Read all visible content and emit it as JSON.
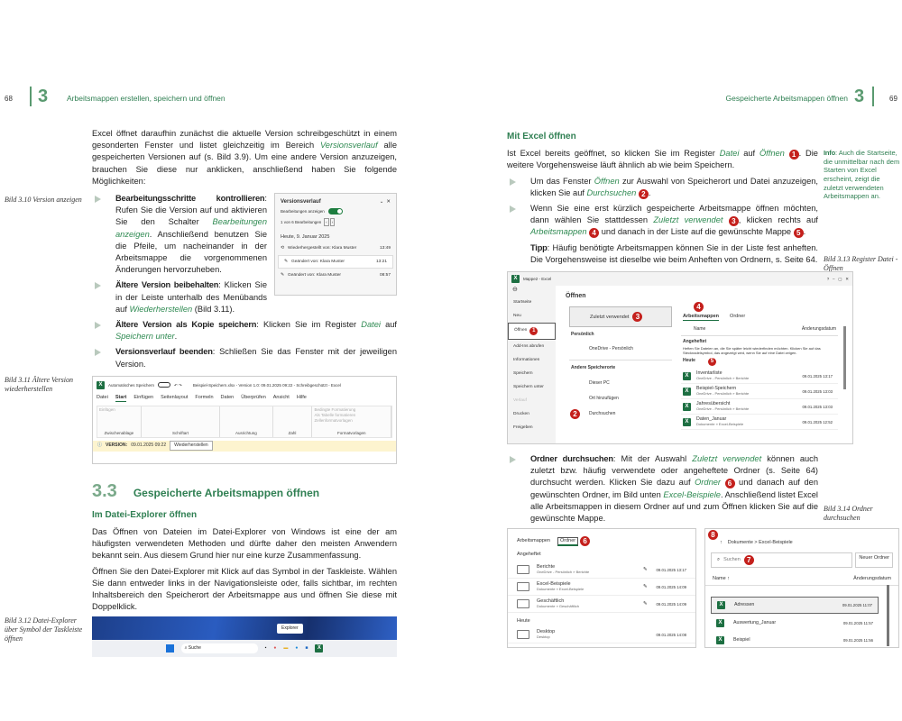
{
  "left": {
    "page_number": "68",
    "chapter": "3",
    "running_title": "Arbeitsmappen erstellen, speichern und öffnen",
    "intro": [
      {
        "t": "Excel öffnet daraufhin zunächst die aktuelle Version schreibgeschützt in einem gesonderten Fenster und listet gleichzeitig im Bereich "
      },
      {
        "t": "Versionsverlauf",
        "s": "i"
      },
      {
        "t": " alle gespeicherten Versionen auf (s. Bild 3.9). Um eine andere Version anzuzeigen, brauchen Sie diese nur anklicken, anschließend haben Sie folgende Möglichkeiten:"
      }
    ],
    "caption_310": "Bild 3.10 Version anzeigen",
    "bullets_a": [
      [
        {
          "t": "Bearbeitungsschritte kontrollieren",
          "s": "b"
        },
        {
          "t": ": Rufen Sie die Version auf und aktivieren Sie den Schalter "
        },
        {
          "t": "Bearbeitungen anzeigen",
          "s": "i"
        },
        {
          "t": ". Anschließend benutzen Sie die Pfeile, um nacheinander in der Arbeitsmappe die vorgenommenen Änderungen hervorzuheben."
        }
      ],
      [
        {
          "t": "Ältere Version beibehalten",
          "s": "b"
        },
        {
          "t": ": Klicken Sie in der Leiste unterhalb des Menübands auf "
        },
        {
          "t": "Wiederherstellen",
          "s": "i"
        },
        {
          "t": " (Bild 3.11)."
        }
      ]
    ],
    "bullets_b": [
      [
        {
          "t": "Ältere Version als Kopie speichern",
          "s": "b"
        },
        {
          "t": ": Klicken Sie im Register "
        },
        {
          "t": "Datei",
          "s": "i"
        },
        {
          "t": " auf "
        },
        {
          "t": "Speichern unter",
          "s": "i"
        },
        {
          "t": "."
        }
      ],
      [
        {
          "t": "Versionsverlauf beenden",
          "s": "b"
        },
        {
          "t": ": Schließen Sie das Fenster mit der jeweiligen Version."
        }
      ]
    ],
    "version_panel": {
      "title": "Versionsverlauf",
      "toggle_label": "Bearbeitungen anzeigen",
      "toggle_on": true,
      "counter": "1 von 6 Bearbeitungen",
      "date": "Heute, 9. Januar 2025",
      "entries": [
        {
          "label": "Wiederhergestellt von: Klara Muster",
          "time": "13:49"
        },
        {
          "label": "Geändert von: Klara Muster",
          "time": "13:21"
        },
        {
          "label": "Geändert von: Klara Muster",
          "time": "08:57"
        }
      ]
    },
    "caption_311": "Bild 3.11 Ältere Version wiederherstellen",
    "ribbon": {
      "autosave": "Automatisches Speichern",
      "title": "Beispiel-Speichern.xlsx - Version 1.0: 09.01.2025 09:22 - Schreibgeschützt - Excel",
      "tabs": [
        "Datei",
        "Start",
        "Einfügen",
        "Seitenlayout",
        "Formeln",
        "Daten",
        "Überprüfen",
        "Ansicht",
        "Hilfe"
      ],
      "active_tab": "Start",
      "groups": [
        "Zwischenablage",
        "Schriftart",
        "Ausrichtung",
        "Zahl",
        "Formatvorlagen"
      ],
      "paste": "Einfügen",
      "styles": [
        "Bedingte Formatierung",
        "Als Tabelle formatieren",
        "Zellenformatvorlagen"
      ],
      "version_label": "VERSION:",
      "version_value": "09.01.2025 09:22",
      "restore_button": "Wiederherstellen"
    },
    "section_number": "3.3",
    "section_title": "Gespeicherte Arbeitsmappen öffnen",
    "sub_title": "Im Datei-Explorer öffnen",
    "para1": "Das Öffnen von Dateien im Datei-Explorer von Windows ist eine der am häufigsten verwendeten Methoden und dürfte daher den meisten Anwendern bekannt sein. Aus diesem Grund hier nur eine kurze Zusammenfassung.",
    "para2": "Öffnen Sie den Datei-Explorer mit Klick auf das Symbol in der Taskleiste. Wählen Sie dann entweder links in der Navigationsleiste oder, falls sichtbar, im rechten Inhaltsbereich den Speicherort der Arbeitsmappe aus und öffnen Sie diese mit Doppelklick.",
    "caption_312": "Bild 3.12 Datei-Explorer über Symbol der Taskleiste öffnen",
    "taskbar": {
      "tooltip": "Explorer",
      "search": "Suche"
    }
  },
  "right": {
    "page_number": "69",
    "chapter": "3",
    "running_title": "Gespeicherte Arbeitsmappen öffnen",
    "sub_title": "Mit Excel öffnen",
    "intro": [
      {
        "t": "Ist Excel bereits geöffnet, so klicken Sie im Register "
      },
      {
        "t": "Datei",
        "s": "i"
      },
      {
        "t": " auf "
      },
      {
        "t": "Öffnen",
        "s": "i"
      },
      {
        "t": " "
      },
      {
        "t": "1",
        "s": "n"
      },
      {
        "t": ". Die weitere Vorgehensweise läuft ähnlich ab wie beim Speichern."
      }
    ],
    "info": [
      {
        "t": "Info",
        "s": "b"
      },
      {
        "t": ": Auch die Startseite, die unmittelbar nach dem Starten von Excel erscheint, zeigt die zuletzt verwendeten Arbeitsmappen an."
      }
    ],
    "bullets": [
      [
        {
          "t": "Um das Fenster "
        },
        {
          "t": "Öffnen",
          "s": "i"
        },
        {
          "t": " zur Auswahl von Speicherort und Datei anzuzeigen, klicken Sie auf "
        },
        {
          "t": "Durchsuchen",
          "s": "i"
        },
        {
          "t": " "
        },
        {
          "t": "2",
          "s": "n"
        },
        {
          "t": "."
        }
      ],
      [
        {
          "t": "Wenn Sie eine erst kürzlich gespeicherte Arbeitsmappe öffnen möchten, dann wählen Sie stattdessen "
        },
        {
          "t": "Zuletzt verwendet",
          "s": "i"
        },
        {
          "t": " "
        },
        {
          "t": "3",
          "s": "n"
        },
        {
          "t": ", klicken rechts auf "
        },
        {
          "t": "Arbeitsmappen",
          "s": "i"
        },
        {
          "t": " "
        },
        {
          "t": "4",
          "s": "n"
        },
        {
          "t": " und danach in der Liste auf die gewünschte Mappe "
        },
        {
          "t": "5",
          "s": "n"
        },
        {
          "t": "."
        }
      ]
    ],
    "tip": [
      {
        "t": "Tipp",
        "s": "b"
      },
      {
        "t": ": Häufig benötigte Arbeitsmappen können Sie in der Liste fest anheften. Die Vorgehensweise ist dieselbe wie beim Anheften von Ordnern, s. Seite 64."
      }
    ],
    "caption_313": "Bild 3.13 Register Datei - Öffnen",
    "open_dialog": {
      "window_title": "Mappe2 - Excel",
      "heading": "Öffnen",
      "nav": [
        "Startseite",
        "Neu",
        "Öffnen",
        "Add-Ins abrufen",
        "Informationen",
        "Speichern",
        "Speichern unter",
        "Verlauf",
        "Drucken",
        "Freigeben"
      ],
      "active_nav": "Öffnen",
      "recent": "Zuletzt verwendet",
      "personal": "Persönlich",
      "onedrive": "OneDrive - Persönlich",
      "other": "Andere Speicherorte",
      "this_pc": "Dieser PC",
      "add_place": "Ort hinzufügen",
      "browse": "Durchsuchen",
      "tabs": [
        "Arbeitsmappen",
        "Ordner"
      ],
      "col_name": "Name",
      "col_date": "Änderungsdatum",
      "pinned": "Angeheftet",
      "pinned_hint": "Heften Sie Dateien an, die Sie später leicht wiederfinden möchten. Klicken Sie auf das Stecknadelsymbol, das angezeigt wird, wenn Sie auf eine Datei zeigen.",
      "today": "Heute",
      "files": [
        {
          "name": "Inventarliste",
          "path": "OneDrive - Persönlich » Berichte",
          "date": "09.01.2025 13:17"
        },
        {
          "name": "Beispiel-Speichern",
          "path": "OneDrive - Persönlich » Berichte",
          "date": "09.01.2025 13:03"
        },
        {
          "name": "Jahresübersicht",
          "path": "OneDrive - Persönlich » Berichte",
          "date": "09.01.2025 13:03"
        },
        {
          "name": "Daten_Januar",
          "path": "Dokumente » Excel-Beispiele",
          "date": "09.01.2025 12:52"
        }
      ]
    },
    "bullet_folder": [
      {
        "t": "Ordner durchsuchen",
        "s": "b"
      },
      {
        "t": ": Mit der Auswahl "
      },
      {
        "t": "Zuletzt verwendet",
        "s": "i"
      },
      {
        "t": " können auch zuletzt bzw. häufig verwendete oder angeheftete Ordner (s. Seite 64) durchsucht werden. Klicken Sie dazu auf "
      },
      {
        "t": "Ordner",
        "s": "i"
      },
      {
        "t": " "
      },
      {
        "t": "6",
        "s": "n"
      },
      {
        "t": " und danach auf den gewünschten Ordner, im Bild unten "
      },
      {
        "t": "Excel-Beispiele",
        "s": "i"
      },
      {
        "t": ". Anschließend listet Excel alle Arbeitsmappen in diesem Ordner auf und zum Öffnen klicken Sie auf die gewünschte Mappe."
      }
    ],
    "caption_314": "Bild 3.14 Ordner durchsuchen",
    "folders": {
      "tabs": [
        "Arbeitsmappen",
        "Ordner"
      ],
      "pinned": "Angeheftet",
      "today": "Heute",
      "items": [
        {
          "name": "Berichte",
          "path": "OneDrive - Persönlich » Berichte",
          "date": "09.01.2025 13:17"
        },
        {
          "name": "Excel-Beispiele",
          "path": "Dokumente » Excel-Beispiele",
          "date": "09.01.2025 14:09"
        },
        {
          "name": "Geschäftlich",
          "path": "Dokumente » Geschäftlich",
          "date": "09.01.2025 14:09"
        }
      ],
      "today_item": {
        "name": "Desktop",
        "path": "Desktop",
        "date": "09.01.2025 14:08"
      }
    },
    "folder_view": {
      "breadcrumb": "Dokumente > Excel-Beispiele",
      "search": "Suchen",
      "new_folder": "Neuer Ordner",
      "col_name": "Name ↑",
      "col_date": "Änderungsdatum",
      "files": [
        {
          "name": "Adressen",
          "date": "09.01.2025 11:07"
        },
        {
          "name": "Auswertung_Januar",
          "date": "09.01.2025 11:57"
        },
        {
          "name": "Beispiel",
          "date": "09.01.2025 11:56"
        }
      ]
    }
  },
  "colors": {
    "heading_green": "#2f7f52",
    "link_green": "#2f8a52",
    "badge_red": "#c4201c",
    "excel_green": "#1d6f42"
  }
}
